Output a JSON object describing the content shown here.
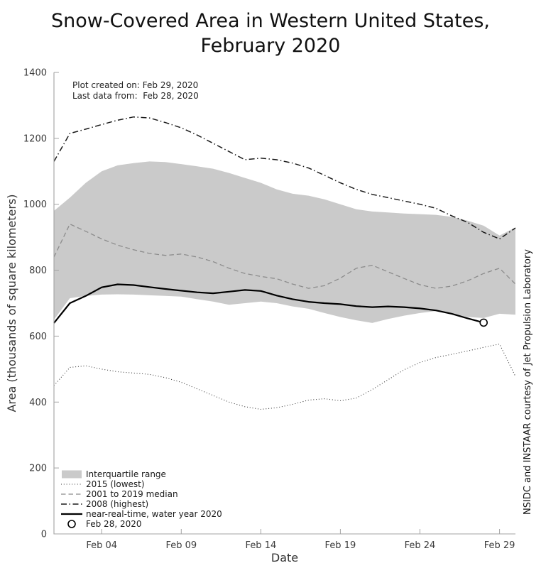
{
  "title": {
    "line1": "Snow-Covered Area in Western United States,",
    "line2": "February 2020"
  },
  "notes": {
    "created": "Plot created on: Feb 29, 2020",
    "last_data": "Last data from:  Feb 28, 2020"
  },
  "credit": "NSIDC and INSTAAR courtesy of Jet Propulsion Laboratory",
  "chart_data": {
    "type": "line",
    "title": "Snow-Covered Area in Western United States, February 2020",
    "xlabel": "Date",
    "ylabel": "Area (thousands of square kilometers)",
    "ylim": [
      0,
      1400
    ],
    "yticks": [
      0,
      200,
      400,
      600,
      800,
      1000,
      1200,
      1400
    ],
    "xticks": [
      {
        "day": 4,
        "label": "Feb 04"
      },
      {
        "day": 9,
        "label": "Feb 09"
      },
      {
        "day": 14,
        "label": "Feb 14"
      },
      {
        "day": 19,
        "label": "Feb 19"
      },
      {
        "day": 24,
        "label": "Feb 24"
      },
      {
        "day": 29,
        "label": "Feb 29"
      }
    ],
    "x_axis": {
      "start": "Feb 01",
      "end": "Mar 01"
    },
    "grid": false,
    "legend_position": "lower left",
    "colors": {
      "band": "#cacaca",
      "median": "#8c8c8c",
      "line_2008": "#1a1a1a",
      "line_2015": "#3a3a3a",
      "line_2020": "#000000",
      "spine": "#a3a3a3",
      "tick_text": "#3c3c3c"
    },
    "x_days": [
      1,
      2,
      3,
      4,
      5,
      6,
      7,
      8,
      9,
      10,
      11,
      12,
      13,
      14,
      15,
      16,
      17,
      18,
      19,
      20,
      21,
      22,
      23,
      24,
      25,
      26,
      27,
      28,
      29,
      30
    ],
    "band": {
      "label": "Interquartile range",
      "upper": [
        980,
        1020,
        1065,
        1100,
        1118,
        1125,
        1130,
        1128,
        1122,
        1115,
        1108,
        1095,
        1080,
        1065,
        1045,
        1032,
        1026,
        1015,
        1000,
        985,
        978,
        975,
        972,
        970,
        968,
        962,
        950,
        935,
        905,
        930
      ],
      "lower": [
        650,
        715,
        722,
        726,
        727,
        726,
        724,
        722,
        720,
        712,
        705,
        695,
        700,
        705,
        700,
        690,
        683,
        670,
        658,
        648,
        640,
        652,
        662,
        670,
        676,
        668,
        658,
        655,
        668,
        665
      ]
    },
    "series": [
      {
        "name": "2015 (lowest)",
        "style": "dotted",
        "color": "#3a3a3a",
        "values": [
          450,
          505,
          510,
          500,
          492,
          488,
          484,
          474,
          460,
          440,
          420,
          400,
          386,
          378,
          383,
          393,
          406,
          410,
          404,
          412,
          438,
          468,
          498,
          520,
          535,
          545,
          555,
          566,
          576,
          478
        ]
      },
      {
        "name": "2001 to 2019 median",
        "style": "dashed",
        "color": "#8c8c8c",
        "values": [
          840,
          940,
          918,
          895,
          876,
          862,
          851,
          845,
          849,
          840,
          826,
          806,
          790,
          781,
          774,
          758,
          745,
          753,
          776,
          806,
          815,
          795,
          775,
          756,
          745,
          752,
          768,
          790,
          806,
          758
        ]
      },
      {
        "name": "2008 (highest)",
        "style": "dashdot",
        "color": "#1a1a1a",
        "values": [
          1130,
          1215,
          1228,
          1242,
          1255,
          1265,
          1262,
          1248,
          1232,
          1210,
          1185,
          1160,
          1135,
          1140,
          1135,
          1125,
          1110,
          1088,
          1065,
          1045,
          1030,
          1020,
          1010,
          1000,
          988,
          965,
          945,
          915,
          895,
          928
        ]
      },
      {
        "name": "near-real-time, water year 2020",
        "style": "solid",
        "color": "#000000",
        "values": [
          640,
          700,
          722,
          748,
          757,
          755,
          749,
          743,
          738,
          733,
          730,
          735,
          740,
          737,
          723,
          712,
          704,
          700,
          697,
          691,
          688,
          690,
          688,
          684,
          678,
          668,
          654,
          641
        ]
      }
    ],
    "marker": {
      "label": "Feb 28, 2020",
      "day": 28,
      "value": 641,
      "shape": "open-circle"
    },
    "legend": [
      {
        "label": "Interquartile range",
        "type": "patch",
        "color": "#cacaca"
      },
      {
        "label": "2015 (lowest)",
        "type": "dotted",
        "color": "#3a3a3a"
      },
      {
        "label": "2001 to 2019 median",
        "type": "dashed",
        "color": "#8c8c8c"
      },
      {
        "label": "2008 (highest)",
        "type": "dashdot",
        "color": "#1a1a1a"
      },
      {
        "label": "near-real-time, water year 2020",
        "type": "solid",
        "color": "#000000"
      },
      {
        "label": "Feb 28, 2020",
        "type": "circle",
        "color": "#000000"
      }
    ]
  }
}
